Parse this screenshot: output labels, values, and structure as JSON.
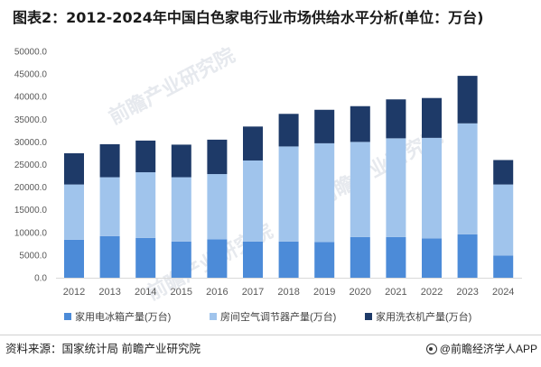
{
  "chart_data": {
    "type": "bar",
    "stacked": true,
    "title": "图表2：2012-2024年中国白色家电行业市场供给水平分析(单位：万台)",
    "xlabel": "",
    "ylabel": "",
    "categories": [
      "2012",
      "2013",
      "2014",
      "2015",
      "2016",
      "2017",
      "2018",
      "2019",
      "2020",
      "2021",
      "2022",
      "2023",
      "2024"
    ],
    "series": [
      {
        "name": "家用电冰箱产量(万台)",
        "color": "#4c8bd8",
        "values": [
          8400,
          9200,
          8800,
          8000,
          8500,
          8000,
          8000,
          7900,
          9000,
          9000,
          8700,
          9600,
          4900
        ]
      },
      {
        "name": "房间空气调节器产量(万台)",
        "color": "#a0c4ec",
        "values": [
          12200,
          13000,
          14500,
          14200,
          14400,
          17900,
          21000,
          21800,
          21000,
          21800,
          22200,
          24500,
          15700
        ]
      },
      {
        "name": "家用洗衣机产量(万台)",
        "color": "#1e3a68",
        "values": [
          6900,
          7300,
          7000,
          7200,
          7600,
          7500,
          7200,
          7400,
          7900,
          8600,
          8800,
          10500,
          5400
        ]
      }
    ],
    "ylim": [
      0,
      50000
    ],
    "yticks": [
      "0.0",
      "5000.0",
      "10000.0",
      "15000.0",
      "20000.0",
      "25000.0",
      "30000.0",
      "35000.0",
      "40000.0",
      "45000.0",
      "50000.0"
    ],
    "grid": false,
    "legend_position": "bottom"
  },
  "footer": {
    "source": "资料来源：国家统计局 前瞻产业研究院",
    "brand": "@前瞻经济学人APP",
    "icon": "qianzhan-logo-icon"
  },
  "watermark": "前瞻产业研究院"
}
